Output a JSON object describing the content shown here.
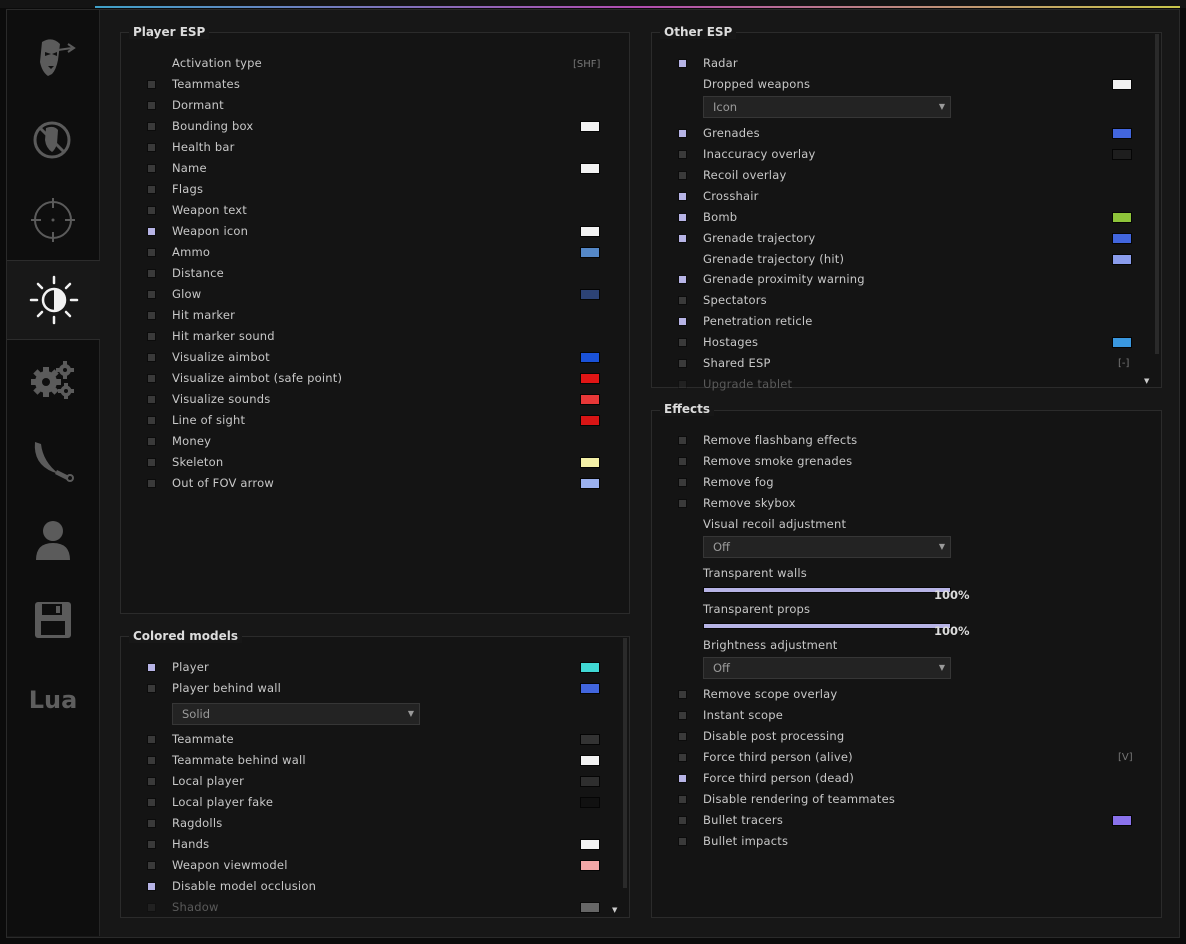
{
  "colors": {
    "checkbox_on": "#b7b4e6",
    "checkbox_off": "#3a3a3a",
    "accent": "#b7b4e6"
  },
  "sidebar": {
    "tabs": [
      {
        "icon": "rage-mask-icon",
        "active": false
      },
      {
        "icon": "legit-mask-icon",
        "active": false
      },
      {
        "icon": "crosshair-icon",
        "active": false
      },
      {
        "icon": "visuals-icon",
        "active": true
      },
      {
        "icon": "gears-icon",
        "active": false
      },
      {
        "icon": "knife-icon",
        "active": false
      },
      {
        "icon": "user-icon",
        "active": false
      },
      {
        "icon": "save-icon",
        "active": false
      },
      {
        "icon": "lua-icon",
        "label": "Lua",
        "active": false
      }
    ]
  },
  "player_esp": {
    "title": "Player ESP",
    "activation": {
      "label": "Activation type",
      "key": "[SHF]"
    },
    "items": [
      {
        "label": "Teammates",
        "checked": false
      },
      {
        "label": "Dormant",
        "checked": false
      },
      {
        "label": "Bounding box",
        "checked": false,
        "color": "#f2f2f2"
      },
      {
        "label": "Health bar",
        "checked": false
      },
      {
        "label": "Name",
        "checked": false,
        "color": "#f2f2f2"
      },
      {
        "label": "Flags",
        "checked": false
      },
      {
        "label": "Weapon text",
        "checked": false
      },
      {
        "label": "Weapon icon",
        "checked": true,
        "color": "#f2f2f2"
      },
      {
        "label": "Ammo",
        "checked": false,
        "color": "#5588c8"
      },
      {
        "label": "Distance",
        "checked": false
      },
      {
        "label": "Glow",
        "checked": false,
        "color": "#2c4275"
      },
      {
        "label": "Hit marker",
        "checked": false
      },
      {
        "label": "Hit marker sound",
        "checked": false
      },
      {
        "label": "Visualize aimbot",
        "checked": false,
        "color": "#1a52d8"
      },
      {
        "label": "Visualize aimbot (safe point)",
        "checked": false,
        "color": "#e01515"
      },
      {
        "label": "Visualize sounds",
        "checked": false,
        "color": "#e83838"
      },
      {
        "label": "Line of sight",
        "checked": false,
        "color": "#d81515"
      },
      {
        "label": "Money",
        "checked": false
      },
      {
        "label": "Skeleton",
        "checked": false,
        "color": "#f4f0a8"
      },
      {
        "label": "Out of FOV arrow",
        "checked": false,
        "color": "#9ab0ee"
      }
    ]
  },
  "colored_models": {
    "title": "Colored models",
    "items": [
      {
        "label": "Player",
        "checked": true,
        "color": "#40d8d4"
      },
      {
        "label": "Player behind wall",
        "checked": false,
        "color": "#4266de"
      },
      {
        "label": "Teammate",
        "checked": false,
        "color": "#333333"
      },
      {
        "label": "Teammate behind wall",
        "checked": false,
        "color": "#f2f2f2"
      },
      {
        "label": "Local player",
        "checked": false,
        "color": "#2e2e2e"
      },
      {
        "label": "Local player fake",
        "checked": false,
        "color": "#111111"
      },
      {
        "label": "Ragdolls",
        "checked": false
      },
      {
        "label": "Hands",
        "checked": false,
        "color": "#f2f2f2"
      },
      {
        "label": "Weapon viewmodel",
        "checked": false,
        "color": "#f2a6a6"
      },
      {
        "label": "Disable model occlusion",
        "checked": true
      },
      {
        "label": "Shadow",
        "checked": false,
        "color": "#8a8a8a",
        "dim": true
      }
    ],
    "material_dropdown": "Solid"
  },
  "other_esp": {
    "title": "Other ESP",
    "items": [
      {
        "label": "Radar",
        "checked": true
      },
      {
        "label": "Dropped weapons",
        "nocheck": true,
        "color": "#f2f2f2"
      },
      {
        "label": "Grenades",
        "checked": true,
        "color": "#4266de"
      },
      {
        "label": "Inaccuracy overlay",
        "checked": false,
        "color": "#1e1e1e"
      },
      {
        "label": "Recoil overlay",
        "checked": false
      },
      {
        "label": "Crosshair",
        "checked": true
      },
      {
        "label": "Bomb",
        "checked": true,
        "color": "#8ec43a"
      },
      {
        "label": "Grenade trajectory",
        "checked": true,
        "color": "#4266de"
      },
      {
        "label": "Grenade trajectory (hit)",
        "nocheck": true,
        "color": "#8a9cec"
      },
      {
        "label": "Grenade proximity warning",
        "checked": true
      },
      {
        "label": "Spectators",
        "checked": false
      },
      {
        "label": "Penetration reticle",
        "checked": true
      },
      {
        "label": "Hostages",
        "checked": false,
        "color": "#3a98e0"
      },
      {
        "label": "Shared ESP",
        "checked": false,
        "key": "[-]"
      },
      {
        "label": "Upgrade tablet",
        "checked": false,
        "dim": true
      }
    ],
    "dropped_weapons_dropdown": "Icon"
  },
  "effects": {
    "title": "Effects",
    "items": [
      {
        "label": "Remove flashbang effects",
        "checked": false
      },
      {
        "label": "Remove smoke grenades",
        "checked": false
      },
      {
        "label": "Remove fog",
        "checked": false
      },
      {
        "label": "Remove skybox",
        "checked": false
      }
    ],
    "visual_recoil": {
      "label": "Visual recoil adjustment",
      "value": "Off"
    },
    "transparent_walls": {
      "label": "Transparent walls",
      "value": 100,
      "display": "100%"
    },
    "transparent_props": {
      "label": "Transparent props",
      "value": 100,
      "display": "100%"
    },
    "brightness": {
      "label": "Brightness adjustment",
      "value": "Off"
    },
    "items2": [
      {
        "label": "Remove scope overlay",
        "checked": false
      },
      {
        "label": "Instant scope",
        "checked": false
      },
      {
        "label": "Disable post processing",
        "checked": false
      },
      {
        "label": "Force third person (alive)",
        "checked": false,
        "key": "[V]"
      },
      {
        "label": "Force third person (dead)",
        "checked": true
      },
      {
        "label": "Disable rendering of teammates",
        "checked": false
      },
      {
        "label": "Bullet tracers",
        "checked": false,
        "color": "#8a72ec"
      },
      {
        "label": "Bullet impacts",
        "checked": false
      }
    ]
  }
}
